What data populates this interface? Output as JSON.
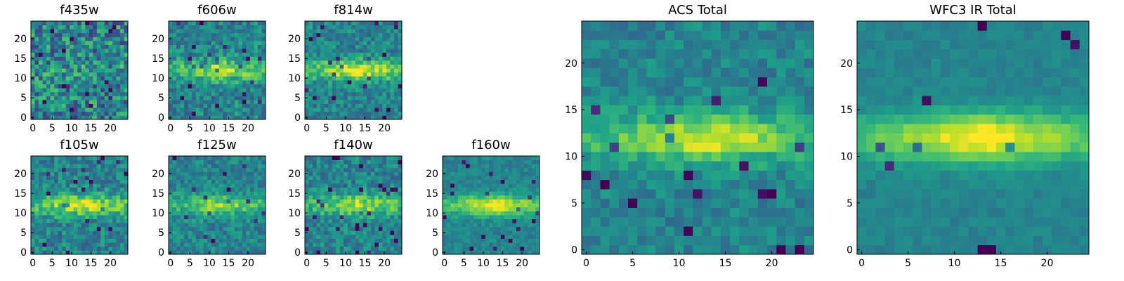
{
  "chart_data": [
    {
      "type": "heatmap",
      "title": "f435w",
      "xticks": [
        "0",
        "5",
        "10",
        "15",
        "20"
      ],
      "yticks": [
        "0",
        "5",
        "10",
        "15",
        "20"
      ],
      "xlim": [
        0,
        25
      ],
      "ylim": [
        0,
        25
      ],
      "colormap": "viridis",
      "band_strength": 0.05,
      "noise": 0.55,
      "seed": 11
    },
    {
      "type": "heatmap",
      "title": "f606w",
      "xticks": [
        "0",
        "5",
        "10",
        "15",
        "20"
      ],
      "yticks": [
        "0",
        "5",
        "10",
        "15",
        "20"
      ],
      "xlim": [
        0,
        25
      ],
      "ylim": [
        0,
        25
      ],
      "colormap": "viridis",
      "band_strength": 0.45,
      "noise": 0.35,
      "seed": 23
    },
    {
      "type": "heatmap",
      "title": "f814w",
      "xticks": [
        "0",
        "5",
        "10",
        "15",
        "20"
      ],
      "yticks": [
        "0",
        "5",
        "10",
        "15",
        "20"
      ],
      "xlim": [
        0,
        25
      ],
      "ylim": [
        0,
        25
      ],
      "colormap": "viridis",
      "band_strength": 0.55,
      "noise": 0.3,
      "seed": 37
    },
    {
      "type": "heatmap",
      "title": "f105w",
      "xticks": [
        "0",
        "5",
        "10",
        "15",
        "20"
      ],
      "yticks": [
        "0",
        "5",
        "10",
        "15",
        "20"
      ],
      "xlim": [
        0,
        25
      ],
      "ylim": [
        0,
        25
      ],
      "colormap": "viridis",
      "band_strength": 0.5,
      "noise": 0.32,
      "seed": 41
    },
    {
      "type": "heatmap",
      "title": "f125w",
      "xticks": [
        "0",
        "5",
        "10",
        "15",
        "20"
      ],
      "yticks": [
        "0",
        "5",
        "10",
        "15",
        "20"
      ],
      "xlim": [
        0,
        25
      ],
      "ylim": [
        0,
        25
      ],
      "colormap": "viridis",
      "band_strength": 0.4,
      "noise": 0.28,
      "seed": 53
    },
    {
      "type": "heatmap",
      "title": "f140w",
      "xticks": [
        "0",
        "5",
        "10",
        "15",
        "20"
      ],
      "yticks": [
        "0",
        "5",
        "10",
        "15",
        "20"
      ],
      "xlim": [
        0,
        25
      ],
      "ylim": [
        0,
        25
      ],
      "colormap": "viridis",
      "band_strength": 0.45,
      "noise": 0.3,
      "seed": 67
    },
    {
      "type": "heatmap",
      "title": "f160w",
      "xticks": [
        "0",
        "5",
        "10",
        "15",
        "20"
      ],
      "yticks": [
        "0",
        "5",
        "10",
        "15",
        "20"
      ],
      "xlim": [
        0,
        25
      ],
      "ylim": [
        0,
        25
      ],
      "colormap": "viridis",
      "band_strength": 0.55,
      "noise": 0.18,
      "seed": 71
    },
    {
      "type": "heatmap",
      "title": "ACS Total",
      "xticks": [
        "0",
        "5",
        "10",
        "15",
        "20"
      ],
      "yticks": [
        "0",
        "5",
        "10",
        "15",
        "20"
      ],
      "xlim": [
        0,
        25
      ],
      "ylim": [
        0,
        25
      ],
      "colormap": "viridis",
      "band_strength": 0.5,
      "noise": 0.22,
      "seed": 83
    },
    {
      "type": "heatmap",
      "title": "WFC3 IR Total",
      "xticks": [
        "0",
        "5",
        "10",
        "15",
        "20"
      ],
      "yticks": [
        "0",
        "5",
        "10",
        "15",
        "20"
      ],
      "xlim": [
        0,
        25
      ],
      "ylim": [
        0,
        25
      ],
      "colormap": "viridis",
      "band_strength": 0.6,
      "noise": 0.1,
      "seed": 97
    }
  ],
  "colors": {
    "axis": "#000000",
    "background": "#ffffff"
  }
}
